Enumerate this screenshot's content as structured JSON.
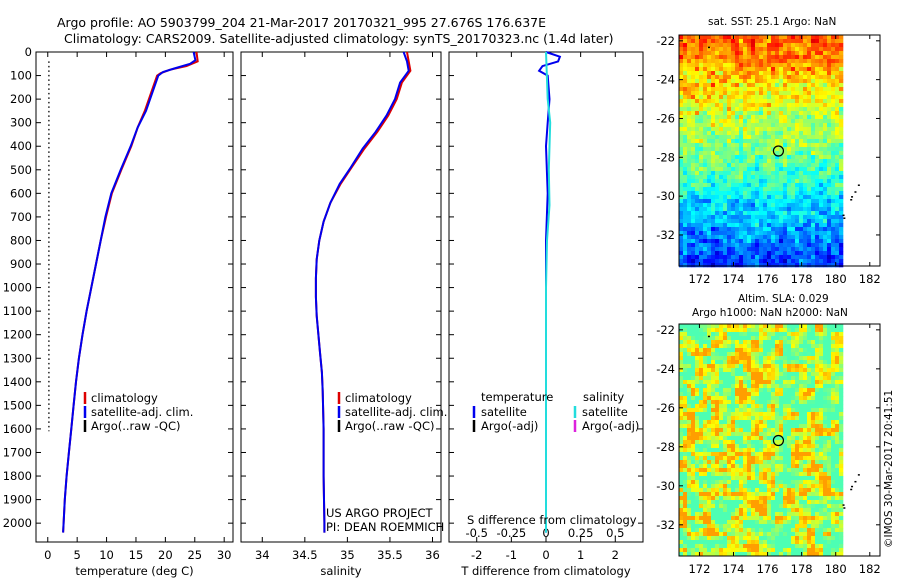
{
  "header": {
    "line1": "Argo profile: AO 5903799_204 21-Mar-2017 20170321_995 27.676S 176.637E",
    "line2": "Climatology: CARS2009. Satellite-adjusted climatology: synTS_20170323.nc (1.4d later)"
  },
  "colors": {
    "climatology": "#dd0000",
    "satellite": "#0000ee",
    "argo": "#000000",
    "sal_satellite": "#22dddd",
    "sal_argo": "#dd22dd"
  },
  "chart_data": [
    {
      "type": "line",
      "name": "temperature-profile",
      "xlabel": "temperature (deg C)",
      "ylabel": "",
      "xlim": [
        -2,
        31.5
      ],
      "ylim": [
        2080,
        0
      ],
      "xticks": [
        0,
        5,
        10,
        15,
        20,
        25,
        30
      ],
      "yticks": [
        0,
        100,
        200,
        300,
        400,
        500,
        600,
        700,
        800,
        900,
        1000,
        1100,
        1200,
        1300,
        1400,
        1500,
        1600,
        1700,
        1800,
        1900,
        2000
      ],
      "legend": [
        "climatology",
        "satellite-adj. clim.",
        "Argo(..raw -QC)"
      ],
      "series": [
        {
          "name": "climatology",
          "color": "#dd0000",
          "points": [
            [
              25.3,
              0
            ],
            [
              25.5,
              40
            ],
            [
              23.6,
              60
            ],
            [
              20.8,
              75
            ],
            [
              19.2,
              90
            ],
            [
              18.6,
              100
            ],
            [
              17.9,
              150
            ],
            [
              16.5,
              250
            ],
            [
              15.3,
              320
            ],
            [
              14.2,
              400
            ],
            [
              12.5,
              500
            ],
            [
              10.9,
              600
            ],
            [
              9.9,
              700
            ],
            [
              9.0,
              800
            ],
            [
              8.2,
              900
            ],
            [
              7.4,
              1000
            ],
            [
              6.6,
              1100
            ],
            [
              5.9,
              1200
            ],
            [
              5.3,
              1300
            ],
            [
              4.8,
              1400
            ],
            [
              4.4,
              1500
            ],
            [
              4.0,
              1600
            ],
            [
              3.6,
              1700
            ],
            [
              3.2,
              1800
            ],
            [
              2.9,
              1900
            ],
            [
              2.7,
              2000
            ],
            [
              2.6,
              2040
            ]
          ]
        },
        {
          "name": "satellite-adj. clim.",
          "color": "#0000ee",
          "points": [
            [
              24.8,
              0
            ],
            [
              25.1,
              35
            ],
            [
              24.2,
              50
            ],
            [
              21.5,
              70
            ],
            [
              19.6,
              85
            ],
            [
              18.8,
              100
            ],
            [
              18.1,
              150
            ],
            [
              16.7,
              250
            ],
            [
              15.3,
              320
            ],
            [
              14.1,
              400
            ],
            [
              12.4,
              500
            ],
            [
              10.8,
              600
            ],
            [
              9.8,
              700
            ],
            [
              9.0,
              800
            ],
            [
              8.2,
              900
            ],
            [
              7.4,
              1000
            ],
            [
              6.6,
              1100
            ],
            [
              5.9,
              1200
            ],
            [
              5.3,
              1300
            ],
            [
              4.8,
              1400
            ],
            [
              4.4,
              1500
            ],
            [
              4.0,
              1600
            ],
            [
              3.6,
              1700
            ],
            [
              3.2,
              1800
            ],
            [
              2.9,
              1900
            ],
            [
              2.7,
              2000
            ],
            [
              2.6,
              2040
            ]
          ]
        },
        {
          "name": "Argo(..raw -QC)",
          "color": "#000000",
          "points": [
            [
              0.2,
              40
            ],
            [
              0.2,
              1610
            ]
          ],
          "dotted": true
        }
      ]
    },
    {
      "type": "line",
      "name": "salinity-profile",
      "xlabel": "salinity",
      "xlim": [
        33.75,
        36.1
      ],
      "ylim": [
        2080,
        0
      ],
      "xticks": [
        34,
        34.5,
        35,
        35.5,
        36
      ],
      "legend": [
        "climatology",
        "satellite-adj. clim.",
        "Argo(..raw -QC)"
      ],
      "series": [
        {
          "name": "climatology",
          "color": "#dd0000",
          "points": [
            [
              35.7,
              0
            ],
            [
              35.72,
              40
            ],
            [
              35.74,
              80
            ],
            [
              35.64,
              130
            ],
            [
              35.58,
              200
            ],
            [
              35.48,
              270
            ],
            [
              35.35,
              340
            ],
            [
              35.2,
              410
            ],
            [
              35.05,
              490
            ],
            [
              34.92,
              560
            ],
            [
              34.8,
              640
            ],
            [
              34.72,
              720
            ],
            [
              34.67,
              800
            ],
            [
              34.64,
              880
            ],
            [
              34.63,
              960
            ],
            [
              34.63,
              1040
            ],
            [
              34.64,
              1120
            ],
            [
              34.66,
              1200
            ],
            [
              34.68,
              1280
            ],
            [
              34.7,
              1360
            ],
            [
              34.71,
              1440
            ],
            [
              34.72,
              1600
            ],
            [
              34.72,
              1800
            ],
            [
              34.73,
              2000
            ],
            [
              34.73,
              2040
            ]
          ]
        },
        {
          "name": "satellite-adj. clim.",
          "color": "#0000ee",
          "points": [
            [
              35.66,
              0
            ],
            [
              35.7,
              40
            ],
            [
              35.72,
              80
            ],
            [
              35.62,
              130
            ],
            [
              35.56,
              200
            ],
            [
              35.46,
              270
            ],
            [
              35.33,
              340
            ],
            [
              35.18,
              410
            ],
            [
              35.04,
              490
            ],
            [
              34.91,
              560
            ],
            [
              34.8,
              640
            ],
            [
              34.72,
              720
            ],
            [
              34.67,
              800
            ],
            [
              34.64,
              880
            ],
            [
              34.63,
              960
            ],
            [
              34.63,
              1040
            ],
            [
              34.64,
              1120
            ],
            [
              34.66,
              1200
            ],
            [
              34.68,
              1280
            ],
            [
              34.7,
              1360
            ],
            [
              34.71,
              1440
            ],
            [
              34.72,
              1600
            ],
            [
              34.72,
              1800
            ],
            [
              34.73,
              2000
            ],
            [
              34.73,
              2040
            ]
          ]
        }
      ],
      "annotation": [
        "US ARGO PROJECT",
        "PI: DEAN ROEMMICH"
      ]
    },
    {
      "type": "line",
      "name": "difference-profile",
      "xlabel": "T difference from climatology",
      "xlabel_top": "S difference from climatology",
      "xlim": [
        -2.8,
        2.8
      ],
      "ylim": [
        2080,
        0
      ],
      "xticks": [
        -2,
        -1,
        0,
        1,
        2
      ],
      "xticks_top": [
        "-0.5",
        "-0.25",
        "0",
        "0.25",
        "0.5"
      ],
      "legend": {
        "temperature_title": "temperature",
        "salinity_title": "salinity",
        "temperature": [
          "satellite",
          "Argo(-adj)"
        ],
        "salinity": [
          "satellite",
          "Argo(-adj)"
        ]
      },
      "series": [
        {
          "name": "T satellite",
          "color": "#0000ee",
          "points": [
            [
              0,
              0
            ],
            [
              0.4,
              20
            ],
            [
              0.35,
              40
            ],
            [
              -0.1,
              60
            ],
            [
              -0.2,
              80
            ],
            [
              0.05,
              100
            ],
            [
              0.1,
              200
            ],
            [
              0.05,
              300
            ],
            [
              0,
              400
            ],
            [
              0.05,
              600
            ],
            [
              0,
              800
            ],
            [
              0,
              2040
            ]
          ]
        },
        {
          "name": "S satellite",
          "color": "#22dddd",
          "points": [
            [
              0,
              0
            ],
            [
              0.05,
              200
            ],
            [
              0.12,
              300
            ],
            [
              0.08,
              500
            ],
            [
              0.1,
              650
            ],
            [
              0.03,
              800
            ],
            [
              0,
              1000
            ],
            [
              0,
              2040
            ]
          ]
        }
      ]
    },
    {
      "type": "heatmap",
      "name": "sst-map",
      "title": "sat. SST: 25.1  Argo: NaN",
      "xticks": [
        172,
        174,
        176,
        178,
        180,
        182
      ],
      "yticks": [
        -22,
        -24,
        -26,
        -28,
        -30,
        -32
      ],
      "xlim": [
        170.8,
        182.6
      ],
      "ylim": [
        -33.6,
        -21.7
      ],
      "argo_position": [
        176.637,
        -27.676
      ]
    },
    {
      "type": "heatmap",
      "name": "sla-map",
      "title": "Altim. SLA: 0.029",
      "subtitle": "Argo h1000: NaN  h2000: NaN",
      "xticks": [
        172,
        174,
        176,
        178,
        180,
        182
      ],
      "yticks": [
        -22,
        -24,
        -26,
        -28,
        -30,
        -32
      ],
      "xlim": [
        170.8,
        182.6
      ],
      "ylim": [
        -33.6,
        -21.7
      ],
      "argo_position": [
        176.637,
        -27.676
      ]
    }
  ],
  "credit": "©IMOS 30-Mar-2017 20:41:51"
}
